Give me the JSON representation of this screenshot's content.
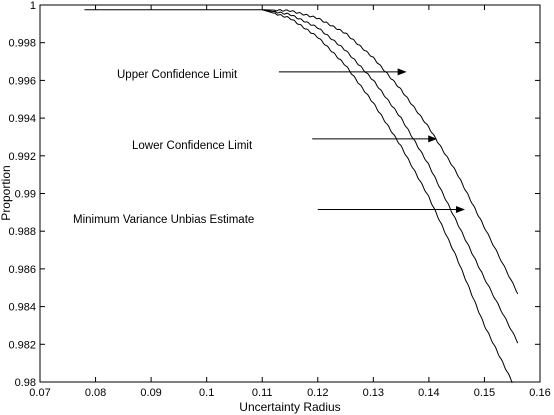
{
  "chart_data": {
    "type": "line",
    "title": "",
    "xlabel": "Uncertainty Radius",
    "ylabel": "Proportion",
    "xlim": [
      0.07,
      0.16
    ],
    "ylim": [
      0.98,
      1.0
    ],
    "grid": false,
    "xticks": [
      "0.07",
      "0.08",
      "0.09",
      "0.1",
      "0.11",
      "0.12",
      "0.13",
      "0.14",
      "0.15",
      "0.16"
    ],
    "yticks": [
      "0.98",
      "0.982",
      "0.984",
      "0.986",
      "0.988",
      "0.99",
      "0.992",
      "0.994",
      "0.996",
      "0.998",
      "1"
    ],
    "series": [
      {
        "x": [
          0.078,
          0.11,
          0.115,
          0.12,
          0.125,
          0.13,
          0.135,
          0.14,
          0.145,
          0.15,
          0.156
        ],
        "y": [
          0.99975,
          0.99975,
          0.9997,
          0.9993,
          0.9985,
          0.9972,
          0.9955,
          0.9935,
          0.9911,
          0.9882,
          0.9847
        ]
      },
      {
        "x": [
          0.11,
          0.115,
          0.12,
          0.125,
          0.13,
          0.135,
          0.14,
          0.145,
          0.15,
          0.156
        ],
        "y": [
          0.99975,
          0.9995,
          0.9988,
          0.9976,
          0.996,
          0.994,
          0.9915,
          0.9885,
          0.9855,
          0.9821
        ]
      },
      {
        "x": [
          0.11,
          0.115,
          0.12,
          0.125,
          0.13,
          0.135,
          0.14,
          0.145,
          0.15,
          0.155
        ],
        "y": [
          0.99975,
          0.9993,
          0.9983,
          0.9968,
          0.9948,
          0.9925,
          0.9898,
          0.9866,
          0.983,
          0.98
        ]
      }
    ],
    "annotations": [
      {
        "text": "Upper Confidence Limit",
        "arrow_from": [
          0.113,
          0.99645
        ],
        "arrow_to": [
          0.136,
          0.99645
        ]
      },
      {
        "text": "Lower Confidence Limit",
        "arrow_from": [
          0.119,
          0.9929
        ],
        "arrow_to": [
          0.1415,
          0.9929
        ]
      },
      {
        "text": "Minimum Variance Unbias Estimate",
        "arrow_from": [
          0.12,
          0.98915
        ],
        "arrow_to": [
          0.1465,
          0.98915
        ]
      }
    ]
  }
}
